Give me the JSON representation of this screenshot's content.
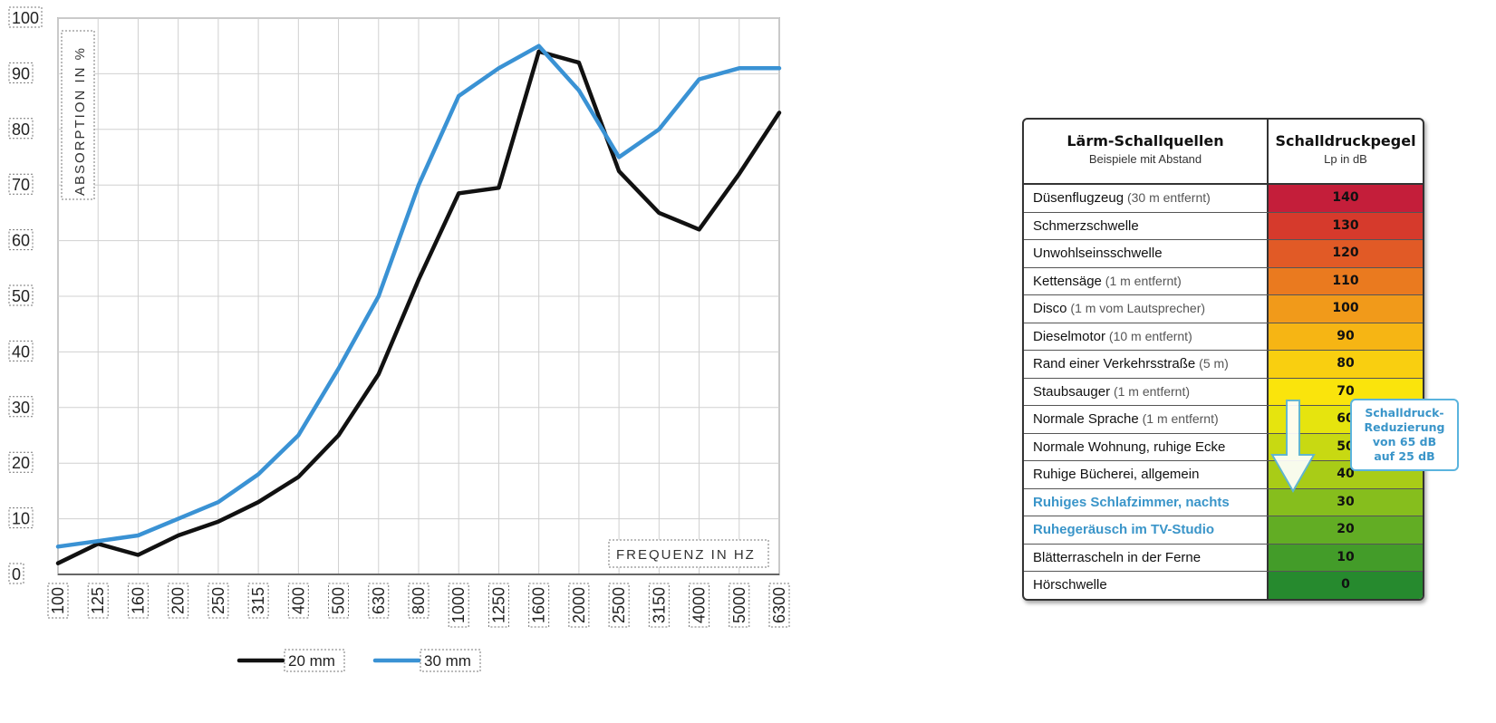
{
  "chart_data": {
    "type": "line",
    "ylabel": "ABSORPTION IN %",
    "xlabel": "FREQUENZ IN HZ",
    "ylim": [
      0,
      100
    ],
    "yticks": [
      "0",
      "10",
      "20",
      "30",
      "40",
      "50",
      "60",
      "70",
      "80",
      "90",
      "100"
    ],
    "categories": [
      "100",
      "125",
      "160",
      "200",
      "250",
      "315",
      "400",
      "500",
      "630",
      "800",
      "1000",
      "1250",
      "1600",
      "2000",
      "2500",
      "3150",
      "4000",
      "5000",
      "6300"
    ],
    "grid": true,
    "legend_position": "bottom",
    "series": [
      {
        "name": "20 mm",
        "color": "#111111",
        "values": [
          2,
          5.5,
          3.5,
          7,
          9.5,
          13,
          17.5,
          25,
          36,
          53,
          68.5,
          69.5,
          94,
          92,
          72.5,
          65,
          62,
          72,
          83
        ]
      },
      {
        "name": "30 mm",
        "color": "#3a92d4",
        "values": [
          5,
          6,
          7,
          10,
          13,
          18,
          25,
          37,
          50,
          70,
          86,
          91,
          95,
          87,
          75,
          80,
          89,
          91,
          91
        ]
      }
    ]
  },
  "table": {
    "header_left_title": "Lärm-Schallquellen",
    "header_left_sub": "Beispiele mit Abstand",
    "header_right_title": "Schalldruckpegel",
    "header_right_sub": "Lp in dB",
    "rows": [
      {
        "name": "Düsenflugzeug",
        "note": " (30 m entfernt)",
        "value": "140",
        "color": "#c41e3a"
      },
      {
        "name": "Schmerzschwelle",
        "note": "",
        "value": "130",
        "color": "#d63a2c"
      },
      {
        "name": "Unwohlseinsschwelle",
        "note": "",
        "value": "120",
        "color": "#e15a26"
      },
      {
        "name": "Kettensäge",
        "note": " (1 m entfernt)",
        "value": "110",
        "color": "#ea7a1f"
      },
      {
        "name": "Disco",
        "note": " (1 m vom Lautsprecher)",
        "value": "100",
        "color": "#f19a1a"
      },
      {
        "name": "Dieselmotor",
        "note": " (10 m entfernt)",
        "value": "90",
        "color": "#f6b514"
      },
      {
        "name": "Rand einer Verkehrsstraße",
        "note": " (5 m)",
        "value": "80",
        "color": "#f9cf10"
      },
      {
        "name": "Staubsauger",
        "note": " (1 m entfernt)",
        "value": "70",
        "color": "#fae40c"
      },
      {
        "name": "Normale Sprache",
        "note": " (1 m entfernt)",
        "value": "60",
        "color": "#e6e40e"
      },
      {
        "name": "Normale Wohnung, ruhige Ecke",
        "note": "",
        "value": "50",
        "color": "#c8d912"
      },
      {
        "name": "Ruhige Bücherei, allgemein",
        "note": "",
        "value": "40",
        "color": "#a9cc17"
      },
      {
        "name": "Ruhiges Schlafzimmer, nachts",
        "note": "",
        "value": "30",
        "color": "#86be1d",
        "highlight": true
      },
      {
        "name": "Ruhegeräusch im TV-Studio",
        "note": "",
        "value": "20",
        "color": "#62ad24",
        "highlight": true
      },
      {
        "name": "Blätterrascheln in der Ferne",
        "note": "",
        "value": "10",
        "color": "#439c29"
      },
      {
        "name": "Hörschwelle",
        "note": "",
        "value": "0",
        "color": "#268a2e"
      }
    ],
    "callout": [
      "Schalldruck-",
      "Reduzierung",
      "von 65 dB",
      "auf 25 dB"
    ]
  }
}
